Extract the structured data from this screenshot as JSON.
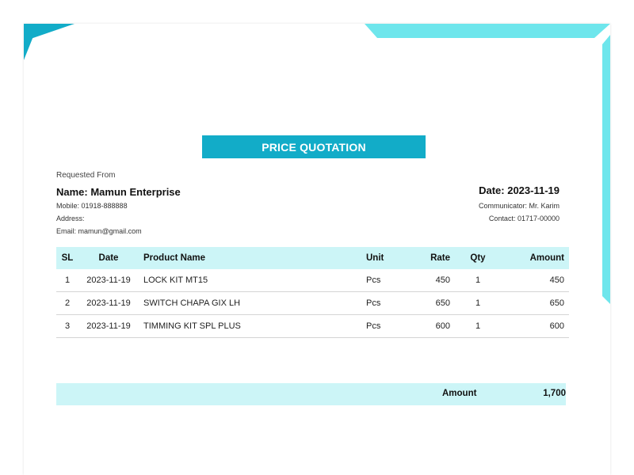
{
  "document": {
    "title": "PRICE QUOTATION",
    "requested_from_label": "Requested From",
    "customer": {
      "name_line": "Name: Mamun Enterprise",
      "mobile_line": "Mobile: 01918-888888",
      "address_line": "Address:",
      "email_line": "Email: mamun@gmail.com"
    },
    "meta": {
      "date_line": "Date: 2023-11-19",
      "communicator_line": "Communicator: Mr. Karim",
      "contact_line": "Contact: 01717-00000"
    },
    "table": {
      "headers": [
        "SL",
        "Date",
        "Product Name",
        "Unit",
        "Rate",
        "Qty",
        "Amount"
      ],
      "rows": [
        [
          "1",
          "2023-11-19",
          "LOCK KIT MT15",
          "Pcs",
          "450",
          "1",
          "450"
        ],
        [
          "2",
          "2023-11-19",
          "SWITCH CHAPA GIX LH",
          "Pcs",
          "650",
          "1",
          "650"
        ],
        [
          "3",
          "2023-11-19",
          "TIMMING KIT SPL PLUS",
          "Pcs",
          "600",
          "1",
          "600"
        ]
      ]
    },
    "total": {
      "label": "Amount",
      "value": "1,700"
    }
  },
  "colors": {
    "accent": "#12acc8",
    "accent_light": "#6ee6ec",
    "table_header_bg": "#ccf5f7"
  }
}
